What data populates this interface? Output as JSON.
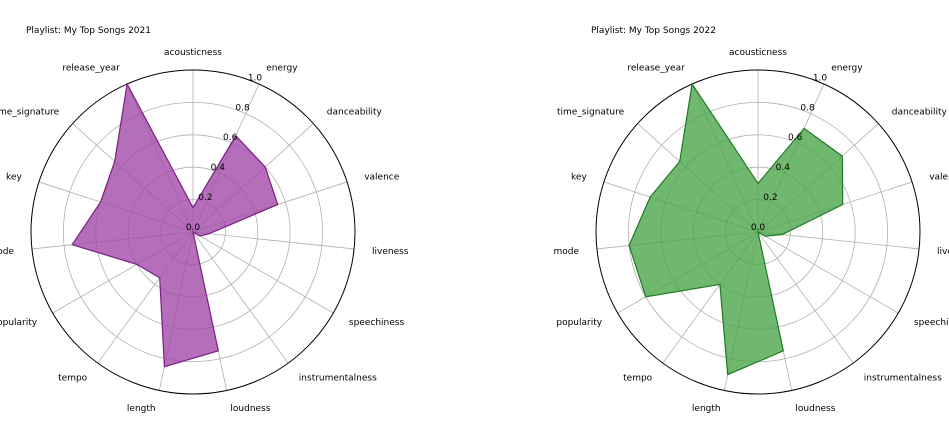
{
  "chart_data": [
    {
      "type": "radar",
      "title": "Playlist:  My Top Songs 2021",
      "categories": [
        "acousticness",
        "energy",
        "danceability",
        "valence",
        "liveness",
        "speechiness",
        "instrumentalness",
        "loudness",
        "length",
        "tempo",
        "popularity",
        "mode",
        "key",
        "time_signature",
        "release_year"
      ],
      "values": [
        0.15,
        0.65,
        0.6,
        0.55,
        0.1,
        0.05,
        0.0,
        0.75,
        0.85,
        0.35,
        0.4,
        0.75,
        0.6,
        0.65,
        1.0
      ],
      "rticks": [
        0.0,
        0.2,
        0.4,
        0.6,
        0.8,
        1.0
      ],
      "rlim": [
        0,
        1
      ],
      "fill_color": "#a24aa8",
      "line_color": "#7c1f84"
    },
    {
      "type": "radar",
      "title": "Playlist:  My Top Songs 2022",
      "categories": [
        "acousticness",
        "energy",
        "danceability",
        "valence",
        "liveness",
        "speechiness",
        "instrumentalness",
        "loudness",
        "length",
        "tempo",
        "popularity",
        "mode",
        "key",
        "time_signature",
        "release_year"
      ],
      "values": [
        0.3,
        0.7,
        0.7,
        0.55,
        0.15,
        0.05,
        0.0,
        0.75,
        0.9,
        0.4,
        0.8,
        0.8,
        0.7,
        0.65,
        1.0
      ],
      "rticks": [
        0.0,
        0.2,
        0.4,
        0.6,
        0.8,
        1.0
      ],
      "rlim": [
        0,
        1
      ],
      "fill_color": "#4ca64c",
      "line_color": "#217a21"
    }
  ]
}
